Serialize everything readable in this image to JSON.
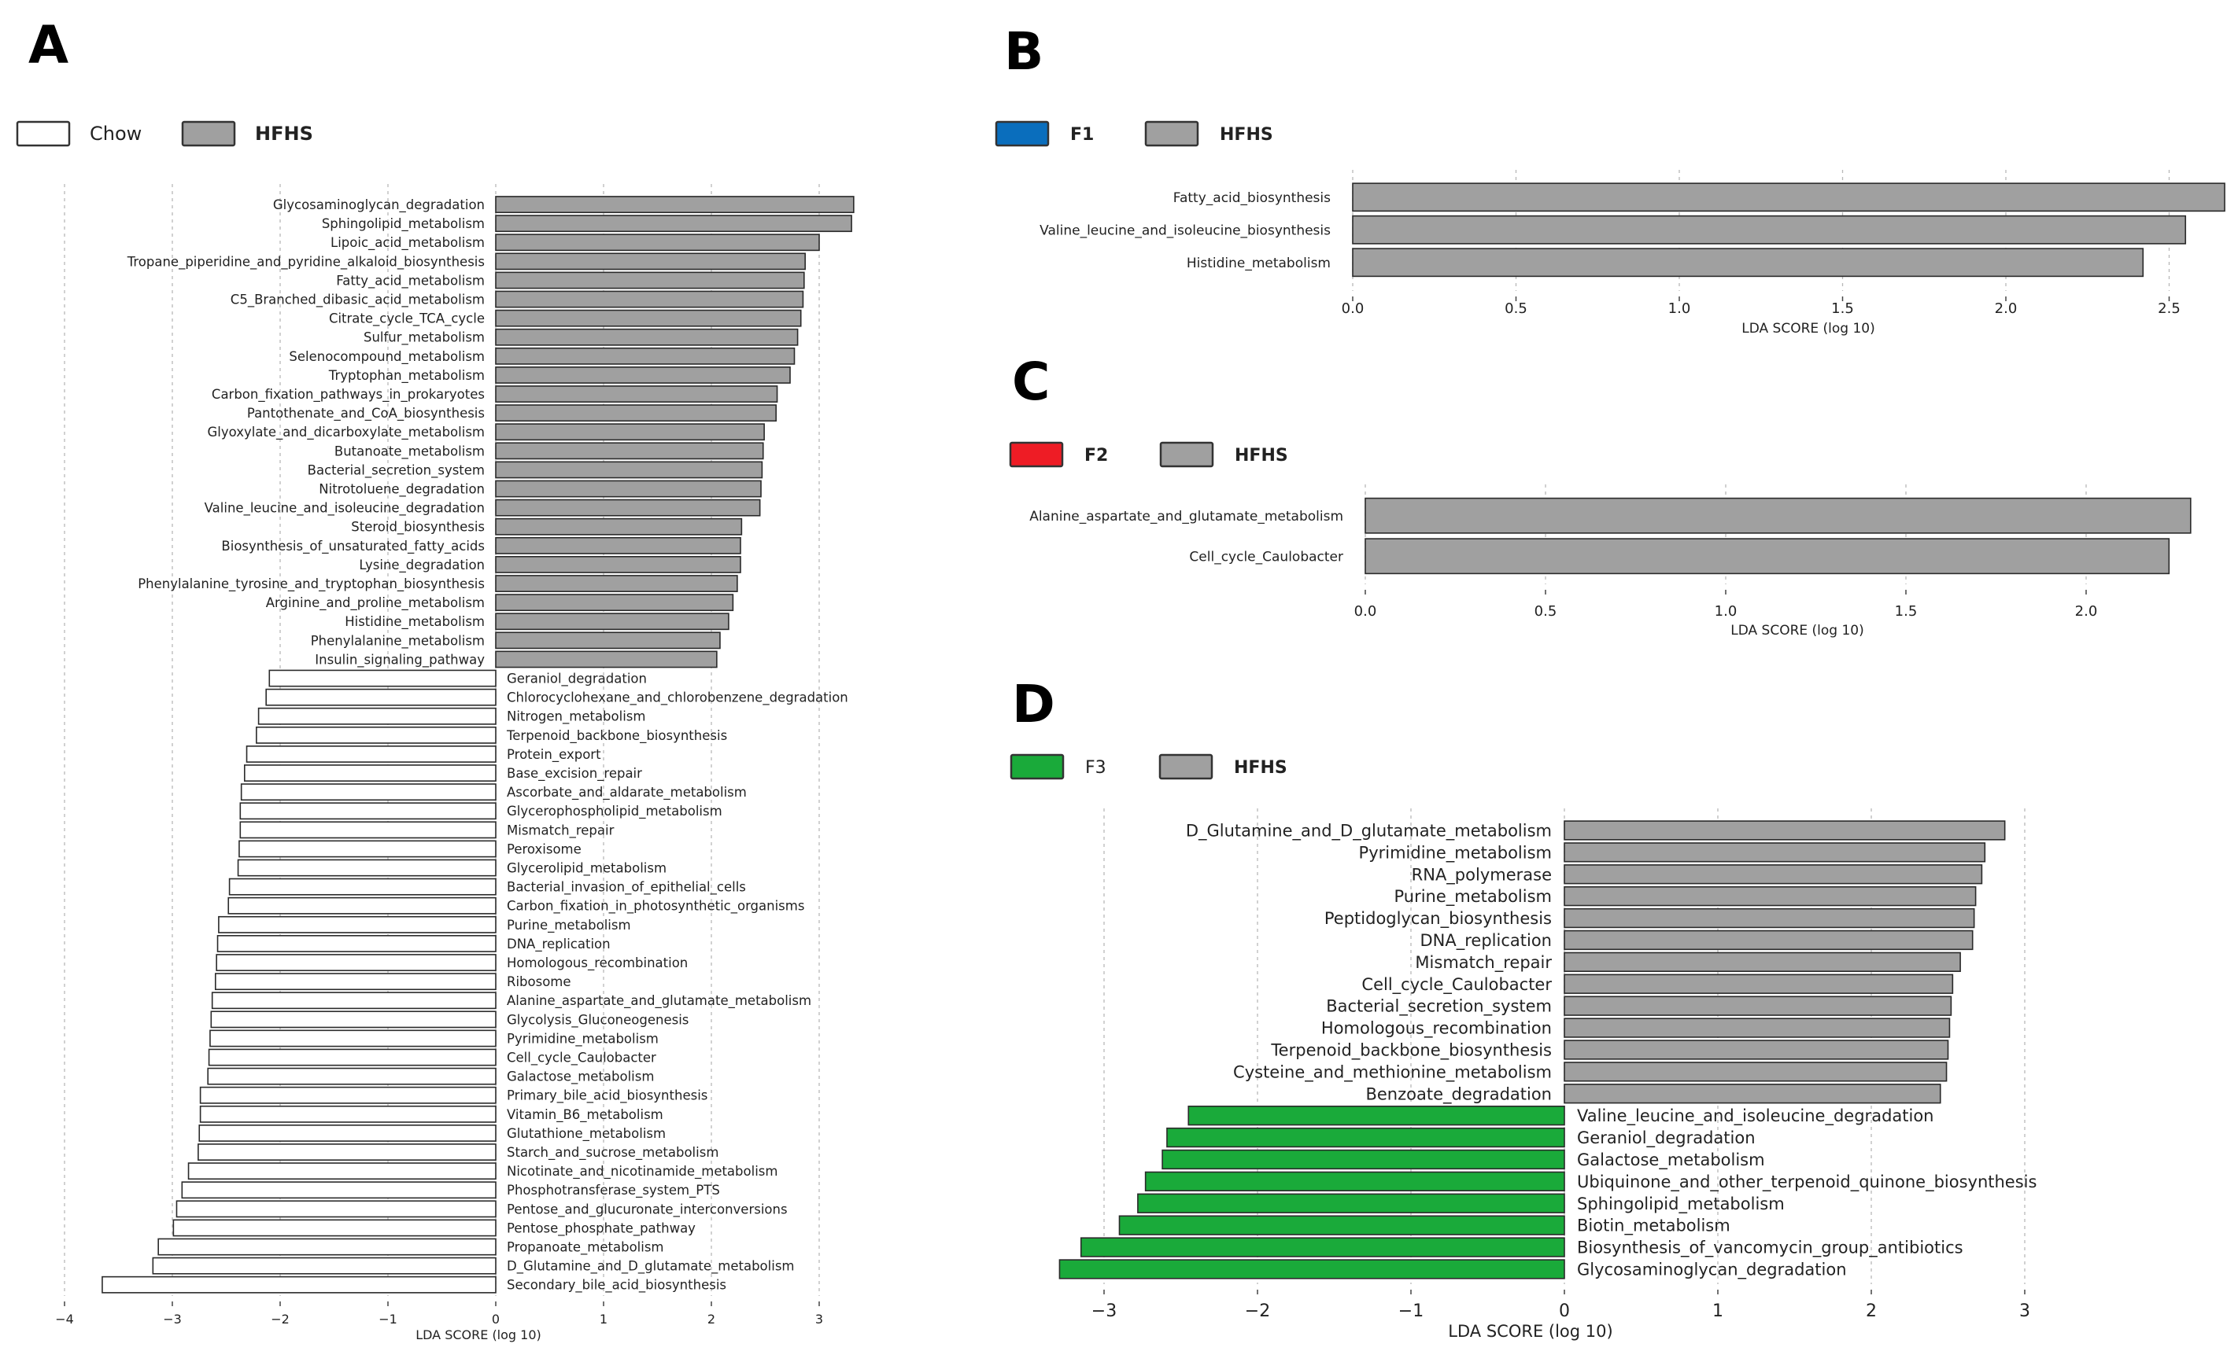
{
  "chart_data": [
    {
      "panel": "A",
      "type": "bar",
      "orientation": "horizontal",
      "legend": [
        {
          "label": "Chow",
          "color": "#ffffff"
        },
        {
          "label": "HFHS",
          "color": "#a0a0a0"
        }
      ],
      "xlabel": "LDA SCORE (log 10)",
      "xlim": [
        -4,
        3.5
      ],
      "xticks": [
        -4,
        -3,
        -2,
        -1,
        0,
        1,
        2,
        3
      ],
      "tick_labels": [
        "−4",
        "−3",
        "−2",
        "−1",
        "0",
        "1",
        "2",
        "3"
      ],
      "bars": [
        {
          "label": "Glycosaminoglycan_degradation",
          "value": 3.32,
          "group": "HFHS"
        },
        {
          "label": "Sphingolipid_metabolism",
          "value": 3.3,
          "group": "HFHS"
        },
        {
          "label": "Lipoic_acid_metabolism",
          "value": 3.0,
          "group": "HFHS"
        },
        {
          "label": "Tropane_piperidine_and_pyridine_alkaloid_biosynthesis",
          "value": 2.87,
          "group": "HFHS"
        },
        {
          "label": "Fatty_acid_metabolism",
          "value": 2.86,
          "group": "HFHS"
        },
        {
          "label": "C5_Branched_dibasic_acid_metabolism",
          "value": 2.85,
          "group": "HFHS"
        },
        {
          "label": "Citrate_cycle_TCA_cycle",
          "value": 2.83,
          "group": "HFHS"
        },
        {
          "label": "Sulfur_metabolism",
          "value": 2.8,
          "group": "HFHS"
        },
        {
          "label": "Selenocompound_metabolism",
          "value": 2.77,
          "group": "HFHS"
        },
        {
          "label": "Tryptophan_metabolism",
          "value": 2.73,
          "group": "HFHS"
        },
        {
          "label": "Carbon_fixation_pathways_in_prokaryotes",
          "value": 2.61,
          "group": "HFHS"
        },
        {
          "label": "Pantothenate_and_CoA_biosynthesis",
          "value": 2.6,
          "group": "HFHS"
        },
        {
          "label": "Glyoxylate_and_dicarboxylate_metabolism",
          "value": 2.49,
          "group": "HFHS"
        },
        {
          "label": "Butanoate_metabolism",
          "value": 2.48,
          "group": "HFHS"
        },
        {
          "label": "Bacterial_secretion_system",
          "value": 2.47,
          "group": "HFHS"
        },
        {
          "label": "Nitrotoluene_degradation",
          "value": 2.46,
          "group": "HFHS"
        },
        {
          "label": "Valine_leucine_and_isoleucine_degradation",
          "value": 2.45,
          "group": "HFHS"
        },
        {
          "label": "Steroid_biosynthesis",
          "value": 2.28,
          "group": "HFHS"
        },
        {
          "label": "Biosynthesis_of_unsaturated_fatty_acids",
          "value": 2.27,
          "group": "HFHS"
        },
        {
          "label": "Lysine_degradation",
          "value": 2.27,
          "group": "HFHS"
        },
        {
          "label": "Phenylalanine_tyrosine_and_tryptophan_biosynthesis",
          "value": 2.24,
          "group": "HFHS"
        },
        {
          "label": "Arginine_and_proline_metabolism",
          "value": 2.2,
          "group": "HFHS"
        },
        {
          "label": "Histidine_metabolism",
          "value": 2.16,
          "group": "HFHS"
        },
        {
          "label": "Phenylalanine_metabolism",
          "value": 2.08,
          "group": "HFHS"
        },
        {
          "label": "Insulin_signaling_pathway",
          "value": 2.05,
          "group": "HFHS"
        },
        {
          "label": "Geraniol_degradation",
          "value": -2.1,
          "group": "Chow"
        },
        {
          "label": "Chlorocyclohexane_and_chlorobenzene_degradation",
          "value": -2.13,
          "group": "Chow"
        },
        {
          "label": "Nitrogen_metabolism",
          "value": -2.2,
          "group": "Chow"
        },
        {
          "label": "Terpenoid_backbone_biosynthesis",
          "value": -2.22,
          "group": "Chow"
        },
        {
          "label": "Protein_export",
          "value": -2.31,
          "group": "Chow"
        },
        {
          "label": "Base_excision_repair",
          "value": -2.33,
          "group": "Chow"
        },
        {
          "label": "Ascorbate_and_aldarate_metabolism",
          "value": -2.36,
          "group": "Chow"
        },
        {
          "label": "Glycerophospholipid_metabolism",
          "value": -2.37,
          "group": "Chow"
        },
        {
          "label": "Mismatch_repair",
          "value": -2.37,
          "group": "Chow"
        },
        {
          "label": "Peroxisome",
          "value": -2.38,
          "group": "Chow"
        },
        {
          "label": "Glycerolipid_metabolism",
          "value": -2.39,
          "group": "Chow"
        },
        {
          "label": "Bacterial_invasion_of_epithelial_cells",
          "value": -2.47,
          "group": "Chow"
        },
        {
          "label": "Carbon_fixation_in_photosynthetic_organisms",
          "value": -2.48,
          "group": "Chow"
        },
        {
          "label": "Purine_metabolism",
          "value": -2.57,
          "group": "Chow"
        },
        {
          "label": "DNA_replication",
          "value": -2.58,
          "group": "Chow"
        },
        {
          "label": "Homologous_recombination",
          "value": -2.59,
          "group": "Chow"
        },
        {
          "label": "Ribosome",
          "value": -2.6,
          "group": "Chow"
        },
        {
          "label": "Alanine_aspartate_and_glutamate_metabolism",
          "value": -2.63,
          "group": "Chow"
        },
        {
          "label": "Glycolysis_Gluconeogenesis",
          "value": -2.64,
          "group": "Chow"
        },
        {
          "label": "Pyrimidine_metabolism",
          "value": -2.65,
          "group": "Chow"
        },
        {
          "label": "Cell_cycle_Caulobacter",
          "value": -2.66,
          "group": "Chow"
        },
        {
          "label": "Galactose_metabolism",
          "value": -2.67,
          "group": "Chow"
        },
        {
          "label": "Primary_bile_acid_biosynthesis",
          "value": -2.74,
          "group": "Chow"
        },
        {
          "label": "Vitamin_B6_metabolism",
          "value": -2.74,
          "group": "Chow"
        },
        {
          "label": "Glutathione_metabolism",
          "value": -2.75,
          "group": "Chow"
        },
        {
          "label": "Starch_and_sucrose_metabolism",
          "value": -2.76,
          "group": "Chow"
        },
        {
          "label": "Nicotinate_and_nicotinamide_metabolism",
          "value": -2.85,
          "group": "Chow"
        },
        {
          "label": "Phosphotransferase_system_PTS",
          "value": -2.91,
          "group": "Chow"
        },
        {
          "label": "Pentose_and_glucuronate_interconversions",
          "value": -2.96,
          "group": "Chow"
        },
        {
          "label": "Pentose_phosphate_pathway",
          "value": -2.99,
          "group": "Chow"
        },
        {
          "label": "Propanoate_metabolism",
          "value": -3.13,
          "group": "Chow"
        },
        {
          "label": "D_Glutamine_and_D_glutamate_metabolism",
          "value": -3.18,
          "group": "Chow"
        },
        {
          "label": "Secondary_bile_acid_biosynthesis",
          "value": -3.65,
          "group": "Chow"
        }
      ]
    },
    {
      "panel": "B",
      "type": "bar",
      "orientation": "horizontal",
      "legend": [
        {
          "label": "F1",
          "color": "#0a6ebd"
        },
        {
          "label": "HFHS",
          "color": "#a0a0a0"
        }
      ],
      "xlabel": "LDA SCORE (log 10)",
      "xlim": [
        0,
        2.67
      ],
      "xticks": [
        0,
        0.5,
        1.0,
        1.5,
        2.0,
        2.5
      ],
      "tick_labels": [
        "0.0",
        "0.5",
        "1.0",
        "1.5",
        "2.0",
        "2.5"
      ],
      "bars": [
        {
          "label": "Fatty_acid_biosynthesis",
          "value": 2.67,
          "group": "HFHS"
        },
        {
          "label": "Valine_leucine_and_isoleucine_biosynthesis",
          "value": 2.55,
          "group": "HFHS"
        },
        {
          "label": "Histidine_metabolism",
          "value": 2.42,
          "group": "HFHS"
        }
      ]
    },
    {
      "panel": "C",
      "type": "bar",
      "orientation": "horizontal",
      "legend": [
        {
          "label": "F2",
          "color": "#ee1c25"
        },
        {
          "label": "HFHS",
          "color": "#a0a0a0"
        }
      ],
      "xlabel": "LDA SCORE (log 10)",
      "xlim": [
        0,
        2.3
      ],
      "xticks": [
        0,
        0.5,
        1.0,
        1.5,
        2.0
      ],
      "tick_labels": [
        "0.0",
        "0.5",
        "1.0",
        "1.5",
        "2.0"
      ],
      "bars": [
        {
          "label": "Alanine_aspartate_and_glutamate_metabolism",
          "value": 2.29,
          "group": "HFHS"
        },
        {
          "label": "Cell_cycle_Caulobacter",
          "value": 2.23,
          "group": "HFHS"
        }
      ]
    },
    {
      "panel": "D",
      "type": "bar",
      "orientation": "horizontal",
      "legend": [
        {
          "label": "F3",
          "color": "#1aaa3a"
        },
        {
          "label": "HFHS",
          "color": "#a0a0a0"
        }
      ],
      "xlabel": "LDA SCORE (log 10)",
      "xlim": [
        -3.3,
        3.0
      ],
      "xticks": [
        -3,
        -2,
        -1,
        0,
        1,
        2,
        3
      ],
      "tick_labels": [
        "−3",
        "−2",
        "−1",
        "0",
        "1",
        "2",
        "3"
      ],
      "bars": [
        {
          "label": "D_Glutamine_and_D_glutamate_metabolism",
          "value": 2.87,
          "group": "HFHS"
        },
        {
          "label": "Pyrimidine_metabolism",
          "value": 2.74,
          "group": "HFHS"
        },
        {
          "label": "RNA_polymerase",
          "value": 2.72,
          "group": "HFHS"
        },
        {
          "label": "Purine_metabolism",
          "value": 2.68,
          "group": "HFHS"
        },
        {
          "label": "Peptidoglycan_biosynthesis",
          "value": 2.67,
          "group": "HFHS"
        },
        {
          "label": "DNA_replication",
          "value": 2.66,
          "group": "HFHS"
        },
        {
          "label": "Mismatch_repair",
          "value": 2.58,
          "group": "HFHS"
        },
        {
          "label": "Cell_cycle_Caulobacter",
          "value": 2.53,
          "group": "HFHS"
        },
        {
          "label": "Bacterial_secretion_system",
          "value": 2.52,
          "group": "HFHS"
        },
        {
          "label": "Homologous_recombination",
          "value": 2.51,
          "group": "HFHS"
        },
        {
          "label": "Terpenoid_backbone_biosynthesis",
          "value": 2.5,
          "group": "HFHS"
        },
        {
          "label": "Cysteine_and_methionine_metabolism",
          "value": 2.49,
          "group": "HFHS"
        },
        {
          "label": "Benzoate_degradation",
          "value": 2.45,
          "group": "HFHS"
        },
        {
          "label": "Valine_leucine_and_isoleucine_degradation",
          "value": -2.45,
          "group": "F3"
        },
        {
          "label": "Geraniol_degradation",
          "value": -2.59,
          "group": "F3"
        },
        {
          "label": "Galactose_metabolism",
          "value": -2.62,
          "group": "F3"
        },
        {
          "label": "Ubiquinone_and_other_terpenoid_quinone_biosynthesis",
          "value": -2.73,
          "group": "F3"
        },
        {
          "label": "Sphingolipid_metabolism",
          "value": -2.78,
          "group": "F3"
        },
        {
          "label": "Biotin_metabolism",
          "value": -2.9,
          "group": "F3"
        },
        {
          "label": "Biosynthesis_of_vancomycin_group_antibiotics",
          "value": -3.15,
          "group": "F3"
        },
        {
          "label": "Glycosaminoglycan_degradation",
          "value": -3.29,
          "group": "F3"
        }
      ]
    }
  ]
}
